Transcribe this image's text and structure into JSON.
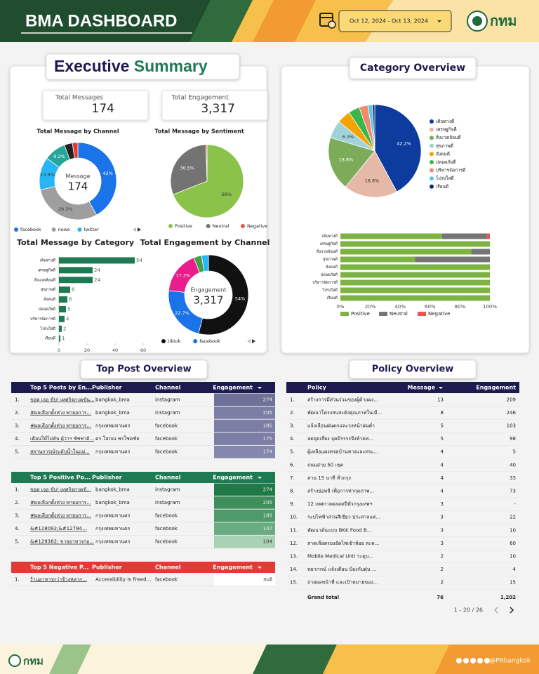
{
  "header": {
    "title": "BMA DASHBOARD",
    "date_range": "Oct 12, 2024 - Oct 13, 2024",
    "logo": "กทม"
  },
  "summary": {
    "title_1": "Executive",
    "title_2": "Summary",
    "kpis": [
      {
        "label": "Total Messages",
        "value": "174"
      },
      {
        "label": "Total Engagement",
        "value": "3,317"
      }
    ]
  },
  "sections": {
    "category": "Category Overview",
    "top_post": "Top Post Overview",
    "policy": "Policy Overview"
  },
  "chart_data": [
    {
      "type": "donut",
      "title": "Total Message by Channel",
      "center_label": "Message",
      "center_value": "174",
      "categories": [
        "facebook",
        "news",
        "twitter",
        null,
        null,
        null
      ],
      "values": [
        42,
        29.3,
        13.8,
        9.2,
        3.4,
        2.3
      ],
      "value_labels": [
        "42%",
        "29.3%",
        "13.8%",
        "9.2%",
        null,
        null
      ],
      "colors": [
        "#1a73e8",
        "#9e9e9e",
        "#29b6f6",
        "#26a69a",
        "#212121",
        "#e53935"
      ],
      "legend": "bottom"
    },
    {
      "type": "pie",
      "title": "Total Message by Sentiment",
      "categories": [
        "Positive",
        "Neutral",
        "Negative"
      ],
      "values": [
        69,
        30.5,
        0.5
      ],
      "value_labels": [
        "69%",
        "30.5%",
        null
      ],
      "colors": [
        "#8bc34a",
        "#737373",
        "#ef5350"
      ],
      "legend": "bottom"
    },
    {
      "type": "hbar",
      "title": "Total Message by Category",
      "categories": [
        "เดินทางดี",
        "เศรษฐกิจดี",
        "สิ่งแวดล้อมดี",
        "สุขภาพดี",
        "สังคมดี",
        "ปลอดภัยดี",
        "บริหารจัดการดี",
        "โปร่งใสดี",
        "เรียนดี"
      ],
      "values": [
        54,
        24,
        24,
        8,
        6,
        5,
        4,
        2,
        1
      ],
      "color": "#1e7a52",
      "xlim": [
        0,
        60
      ],
      "xticks": [
        0,
        20,
        40,
        60
      ]
    },
    {
      "type": "donut",
      "title": "Total Engagement by Channel",
      "center_label": "Engagement",
      "center_value": "3,317",
      "categories": [
        "tiktok",
        "facebook",
        null,
        null,
        null
      ],
      "values": [
        54,
        22.7,
        17.3,
        3.2,
        2.8
      ],
      "value_labels": [
        "54%",
        "22.7%",
        "17.3%",
        null,
        null
      ],
      "colors": [
        "#111111",
        "#1a73e8",
        "#e91e8c",
        "#43a047",
        "#29b6f6"
      ],
      "legend": "bottom"
    },
    {
      "type": "pie",
      "categories": [
        "เดินทางดี",
        "เศรษฐกิจดี",
        "สิ่งแวดล้อมดี",
        "สุขภาพดี",
        "สังคมดี",
        "ปลอดภัยดี",
        "บริหารจัดการดี",
        "โปร่งใสดี",
        "เรียนดี"
      ],
      "values": [
        42.2,
        18.8,
        18.8,
        6.3,
        4.7,
        3.9,
        3.1,
        1.6,
        0.8
      ],
      "value_labels": [
        "42.2%",
        "18.8%",
        "18.8%",
        "6.3%",
        null,
        null,
        null,
        null,
        null
      ],
      "colors": [
        "#0d3b9e",
        "#e6b8a8",
        "#7cac5a",
        "#9fd3d9",
        "#f4a300",
        "#3cb54a",
        "#f08a6c",
        "#5bc8e8",
        "#132a6b"
      ],
      "legend": "right"
    },
    {
      "type": "stacked_hbar",
      "categories": [
        "เดินทางดี",
        "เศรษฐกิจดี",
        "สิ่งแวดล้อมดี",
        "สุขภาพดี",
        "สังคมดี",
        "ปลอดภัยดี",
        "บริหารจัดการดี",
        "โปร่งใสดี",
        "เรียนดี"
      ],
      "series": [
        {
          "name": "Positive",
          "color": "#7cb342",
          "values": [
            68,
            100,
            87.5,
            50,
            100,
            100,
            100,
            100,
            100
          ]
        },
        {
          "name": "Neutral",
          "color": "#757575",
          "values": [
            30,
            0,
            12.5,
            50,
            0,
            0,
            0,
            0,
            0
          ]
        },
        {
          "name": "Negative",
          "color": "#ef5350",
          "values": [
            2,
            0,
            0,
            0,
            0,
            0,
            0,
            0,
            0
          ]
        }
      ],
      "xlim": [
        0,
        100
      ],
      "xticks": [
        {
          "value": 0,
          "label": "0%"
        },
        {
          "value": 20,
          "label": "20%"
        },
        {
          "value": 40,
          "label": "40%"
        },
        {
          "value": 60,
          "label": "60%"
        },
        {
          "value": 80,
          "label": "80%"
        },
        {
          "value": 100,
          "label": "100%"
        }
      ],
      "legend": "bottom"
    }
  ],
  "tables": {
    "top_posts": {
      "columns": [
        "Top 5 Posts by En...",
        "Publisher",
        "Channel",
        "Engagement"
      ],
      "header_color": "#1c1a4f",
      "highlight_colors": [
        "#6f7199",
        "#7c7ea5",
        "#7c7ea5",
        "#7c7ea5",
        "#8587ad"
      ],
      "rows": [
        [
          "1.",
          "ขอด เจอ ขับ! เทศกิจกวดขัน...",
          "bangkok_bma",
          "instagram",
          "274"
        ],
        [
          "2.",
          "#ผลเลือกตั้งห่วง พายอการ...",
          "bangkok_bma",
          "instagram",
          "205"
        ],
        [
          "3.",
          "#ผลเลือกตั้งห่วง พายอการ...",
          "กรุงเทพมหานคร",
          "facebook",
          "185"
        ],
        [
          "4.",
          "เตือนให้ไม่ทัน ผู้ว่าฯ ชัชชาติ...",
          "ดร.โสภณ พรโชคชัย",
          "facebook",
          "175"
        ],
        [
          "5.",
          "สถานการณ์ระดับน้ำในแม่...",
          "กรุงเทพมหานคร",
          "facebook",
          "174"
        ]
      ]
    },
    "top_positive": {
      "columns": [
        "Top 5 Positive Po...",
        "Publisher",
        "Channel",
        "Engagement"
      ],
      "header_color": "#1e7a52",
      "highlight_colors": [
        "#1f7a45",
        "#3e8e5c",
        "#4f9a6a",
        "#6aab80",
        "#a9d1b4"
      ],
      "rows": [
        [
          "1.",
          "ขอด เจอ ขับ! เทศกิจกวดขั...",
          "bangkok_bma",
          "instagram",
          "274"
        ],
        [
          "2.",
          "#ผลเลือกตั้งห่วง พายอการ...",
          "bangkok_bma",
          "instagram",
          "205"
        ],
        [
          "3.",
          "#ผลเลือกตั้งห่วง พายอการ...",
          "กรุงเทพมหานคร",
          "facebook",
          "185"
        ],
        [
          "4.",
          "&#128092;&#12784...",
          "กรุงเทพมหานคร",
          "facebook",
          "147"
        ],
        [
          "5.",
          "&#129382; ขายอาหารก่อ...",
          "กรุงเทพมหานคร",
          "facebook",
          "104"
        ]
      ]
    },
    "top_negative": {
      "columns": [
        "Top 5 Negative P...",
        "Publisher",
        "Channel",
        "Engagement"
      ],
      "header_color": "#e53935",
      "highlight_colors": [
        "#ffffff"
      ],
      "rows": [
        [
          "1.",
          "ร้านอาหารกว่าข้างหลาก...",
          "Accessibility Is Freed...",
          "facebook",
          "null"
        ]
      ]
    },
    "policy": {
      "columns": [
        "Policy",
        "Message",
        "Engagement"
      ],
      "header_color": "#1c1a4f",
      "rows": [
        [
          "1.",
          "สร้างการมีส่วนร่วมของผู้ค้าแผง...",
          "13",
          "209"
        ],
        [
          "2.",
          "พัฒนาโครงสบสะดังคุณภาพในเมื...",
          "8",
          "246"
        ],
        [
          "3.",
          "แจ้งเลือนฝนตกและวงหน้าฝนต่ำ",
          "5",
          "103"
        ],
        [
          "4.",
          "ลดจุดเสี่ยง จุดมีรรรรจีงท้าดท...",
          "5",
          "98"
        ],
        [
          "5.",
          "ผู้เหลือแผงทรดบ้านทางและทระ...",
          "4",
          "5"
        ],
        [
          "6.",
          "ถนนสาย 50 เขต",
          "4",
          "40"
        ],
        [
          "7.",
          "สาน 15 นาที ทั่วกรุง",
          "4",
          "33"
        ],
        [
          "8.",
          "สร้างย่อหลี เพื่อการท่ากุดภาพ...",
          "4",
          "73"
        ],
        [
          "9.",
          "12 เทศกาลตลอดปีทั่วกรุงเทพฯ",
          "3",
          "-"
        ],
        [
          "10.",
          "ระบไฟฟ้าสวนสีเขียว ประสาลแต่...",
          "3",
          "22"
        ],
        [
          "11.",
          "พัฒนาต้นแบบ BKK Food B...",
          "3",
          "10"
        ],
        [
          "12.",
          "สาดเลือดรองอัตไฟเช้าห้อย สะท...",
          "3",
          "60"
        ],
        [
          "13.",
          "Mobile Medical Unit ระดุบ...",
          "2",
          "10"
        ],
        [
          "14.",
          "ทยากรณ์ แจ้งเตือน ป้องกันฝุ่น ...",
          "2",
          "4"
        ],
        [
          "15.",
          "ถ่ายผลหน้าที่ และเป้าหมายของ...",
          "2",
          "15"
        ]
      ],
      "total": [
        "Grand total",
        "76",
        "1,202"
      ],
      "pagination": "1 - 20 / 26"
    }
  },
  "footer": {
    "logo": "กทม",
    "handle": "@PRbangkok"
  }
}
